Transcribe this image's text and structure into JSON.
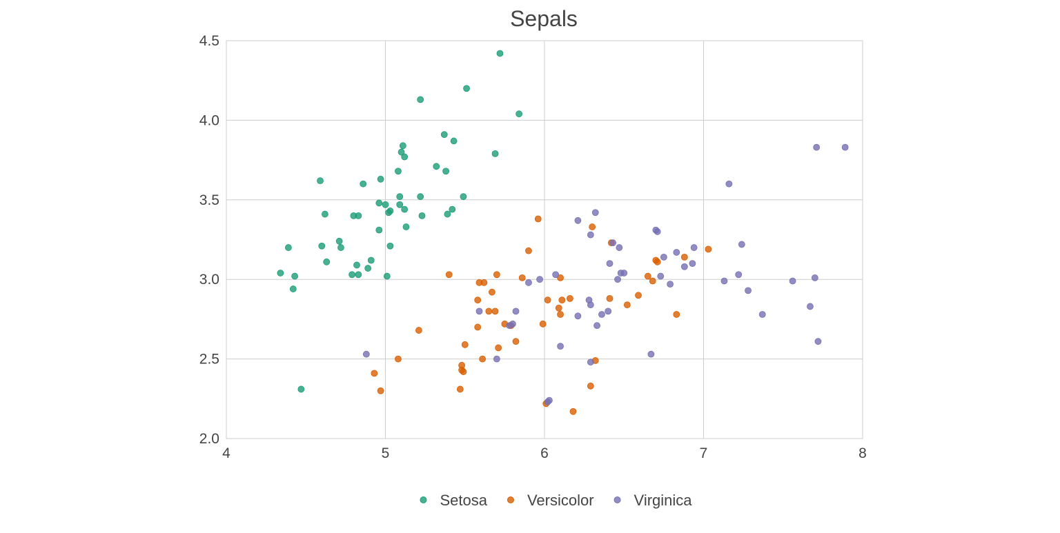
{
  "chart_data": {
    "type": "scatter",
    "title": "Sepals",
    "xlabel": "",
    "ylabel": "",
    "xlim": [
      4,
      8
    ],
    "ylim": [
      2.0,
      4.5
    ],
    "x_ticks": [
      "4",
      "5",
      "6",
      "7",
      "8"
    ],
    "y_ticks": [
      "2.0",
      "2.5",
      "3.0",
      "3.5",
      "4.0",
      "4.5"
    ],
    "grid": true,
    "legend_position": "bottom",
    "series": [
      {
        "name": "Setosa",
        "color": "#1b9e77",
        "x": [
          5.72,
          5.51,
          5.22,
          5.84,
          5.37,
          5.43,
          5.11,
          5.1,
          5.12,
          5.69,
          5.32,
          5.08,
          5.38,
          4.97,
          4.86,
          4.59,
          5.09,
          5.22,
          5.09,
          5.49,
          4.96,
          5.0,
          5.12,
          5.03,
          5.02,
          4.62,
          4.83,
          4.8,
          5.39,
          5.42,
          5.23,
          5.13,
          4.96,
          4.39,
          4.6,
          5.03,
          4.71,
          4.72,
          4.63,
          4.82,
          4.79,
          4.34,
          4.91,
          4.89,
          4.83,
          4.43,
          5.01,
          4.42,
          4.47
        ],
        "y": [
          4.42,
          4.2,
          4.13,
          4.04,
          3.91,
          3.87,
          3.84,
          3.8,
          3.77,
          3.79,
          3.71,
          3.68,
          3.68,
          3.63,
          3.6,
          3.62,
          3.52,
          3.52,
          3.47,
          3.52,
          3.48,
          3.47,
          3.44,
          3.43,
          3.42,
          3.41,
          3.4,
          3.4,
          3.41,
          3.44,
          3.4,
          3.33,
          3.31,
          3.2,
          3.21,
          3.21,
          3.24,
          3.2,
          3.11,
          3.09,
          3.03,
          3.04,
          3.12,
          3.07,
          3.03,
          3.02,
          3.02,
          2.94,
          2.31
        ]
      },
      {
        "name": "Versicolor",
        "color": "#d95f02",
        "x": [
          5.96,
          6.3,
          5.9,
          6.42,
          6.71,
          6.7,
          6.88,
          7.03,
          5.4,
          5.7,
          5.86,
          5.59,
          5.62,
          6.1,
          6.65,
          6.68,
          6.59,
          6.52,
          6.41,
          6.16,
          6.02,
          6.11,
          6.09,
          5.67,
          5.58,
          5.69,
          5.65,
          5.75,
          5.79,
          5.99,
          6.1,
          6.83,
          5.58,
          5.21,
          5.82,
          5.71,
          5.5,
          5.08,
          5.61,
          6.32,
          5.48,
          5.48,
          5.49,
          4.93,
          6.29,
          4.97,
          5.47,
          6.01,
          6.18
        ],
        "y": [
          3.38,
          3.33,
          3.18,
          3.23,
          3.11,
          3.12,
          3.14,
          3.19,
          3.03,
          3.03,
          3.01,
          2.98,
          2.98,
          3.01,
          3.02,
          2.99,
          2.9,
          2.84,
          2.88,
          2.88,
          2.87,
          2.87,
          2.82,
          2.92,
          2.87,
          2.8,
          2.8,
          2.72,
          2.71,
          2.72,
          2.78,
          2.78,
          2.7,
          2.68,
          2.61,
          2.57,
          2.59,
          2.5,
          2.5,
          2.49,
          2.46,
          2.43,
          2.42,
          2.41,
          2.33,
          2.3,
          2.31,
          2.22,
          2.17
        ]
      },
      {
        "name": "Virginica",
        "color": "#7570b3",
        "x": [
          7.71,
          7.89,
          7.16,
          6.32,
          6.21,
          6.7,
          6.71,
          6.29,
          6.43,
          6.47,
          7.24,
          6.94,
          6.83,
          6.75,
          6.41,
          6.88,
          6.93,
          6.79,
          6.07,
          6.48,
          6.46,
          6.5,
          6.73,
          7.13,
          7.22,
          7.56,
          7.7,
          5.97,
          5.9,
          6.28,
          6.29,
          7.28,
          7.67,
          5.82,
          5.59,
          6.4,
          6.36,
          6.21,
          6.33,
          5.8,
          5.78,
          7.37,
          7.72,
          6.1,
          4.88,
          5.7,
          6.67,
          6.29,
          6.03,
          6.02
        ],
        "y": [
          3.83,
          3.83,
          3.6,
          3.42,
          3.37,
          3.31,
          3.3,
          3.28,
          3.23,
          3.2,
          3.22,
          3.2,
          3.17,
          3.14,
          3.1,
          3.08,
          3.1,
          2.97,
          3.03,
          3.04,
          3.0,
          3.04,
          3.02,
          2.99,
          3.03,
          2.99,
          3.01,
          3.0,
          2.98,
          2.87,
          2.84,
          2.93,
          2.83,
          2.8,
          2.8,
          2.8,
          2.78,
          2.77,
          2.71,
          2.72,
          2.71,
          2.78,
          2.61,
          2.58,
          2.53,
          2.5,
          2.53,
          2.48,
          2.24,
          2.23
        ]
      }
    ]
  }
}
